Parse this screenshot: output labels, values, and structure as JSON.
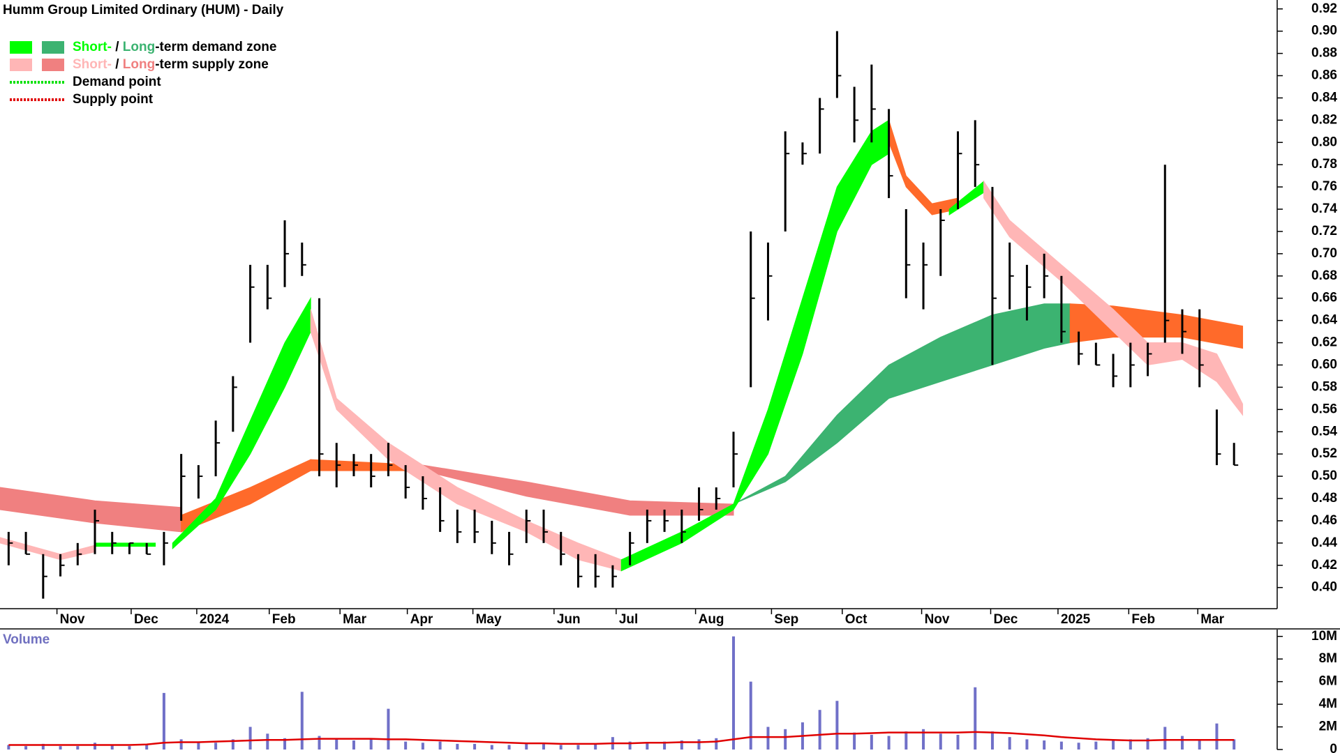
{
  "chart_data": [
    {
      "type": "ohlc",
      "title": "Humm Group Limited Ordinary (HUM) - Daily",
      "color": "#000000",
      "x": [
        0,
        1,
        2,
        3,
        4,
        5,
        6,
        7,
        8,
        9,
        10,
        11,
        12,
        13,
        14,
        15,
        16,
        17,
        18,
        19,
        20,
        21,
        22,
        23,
        24,
        25,
        26,
        27,
        28,
        29,
        30,
        31,
        32,
        33,
        34,
        35,
        36,
        37,
        38,
        39,
        40,
        41,
        42,
        43,
        44,
        45,
        46,
        47,
        48,
        49,
        50,
        51,
        52,
        53,
        54,
        55,
        56,
        57,
        58,
        59,
        60,
        61,
        62,
        63,
        64,
        65,
        66,
        67,
        68,
        69,
        70,
        71
      ],
      "high": [
        0.45,
        0.45,
        0.43,
        0.43,
        0.44,
        0.47,
        0.45,
        0.44,
        0.44,
        0.45,
        0.52,
        0.51,
        0.55,
        0.59,
        0.69,
        0.69,
        0.73,
        0.71,
        0.66,
        0.53,
        0.52,
        0.52,
        0.53,
        0.51,
        0.5,
        0.49,
        0.47,
        0.47,
        0.46,
        0.45,
        0.47,
        0.47,
        0.45,
        0.43,
        0.43,
        0.42,
        0.45,
        0.47,
        0.47,
        0.47,
        0.49,
        0.49,
        0.54,
        0.72,
        0.71,
        0.81,
        0.8,
        0.84,
        0.9,
        0.85,
        0.87,
        0.83,
        0.74,
        0.71,
        0.74,
        0.81,
        0.82,
        0.76,
        0.71,
        0.69,
        0.7,
        0.68,
        0.63,
        0.62,
        0.61,
        0.62,
        0.62,
        0.78,
        0.65,
        0.65,
        0.56,
        0.53
      ],
      "low": [
        0.42,
        0.43,
        0.39,
        0.41,
        0.42,
        0.43,
        0.43,
        0.43,
        0.43,
        0.42,
        0.46,
        0.48,
        0.5,
        0.54,
        0.62,
        0.65,
        0.67,
        0.68,
        0.5,
        0.49,
        0.5,
        0.49,
        0.5,
        0.48,
        0.47,
        0.45,
        0.44,
        0.44,
        0.43,
        0.42,
        0.44,
        0.44,
        0.42,
        0.4,
        0.4,
        0.4,
        0.42,
        0.44,
        0.45,
        0.44,
        0.46,
        0.47,
        0.49,
        0.58,
        0.64,
        0.72,
        0.78,
        0.79,
        0.84,
        0.8,
        0.8,
        0.75,
        0.66,
        0.65,
        0.68,
        0.74,
        0.76,
        0.6,
        0.65,
        0.64,
        0.66,
        0.62,
        0.6,
        0.6,
        0.58,
        0.58,
        0.59,
        0.62,
        0.61,
        0.58,
        0.51,
        0.51
      ],
      "close": [
        0.44,
        0.43,
        0.41,
        0.42,
        0.43,
        0.46,
        0.44,
        0.44,
        0.43,
        0.44,
        0.5,
        0.5,
        0.53,
        0.58,
        0.67,
        0.66,
        0.7,
        0.69,
        0.52,
        0.51,
        0.51,
        0.5,
        0.51,
        0.49,
        0.48,
        0.46,
        0.45,
        0.45,
        0.44,
        0.43,
        0.46,
        0.45,
        0.43,
        0.41,
        0.41,
        0.41,
        0.44,
        0.46,
        0.46,
        0.45,
        0.47,
        0.48,
        0.52,
        0.66,
        0.68,
        0.79,
        0.79,
        0.83,
        0.86,
        0.82,
        0.83,
        0.77,
        0.69,
        0.69,
        0.73,
        0.79,
        0.78,
        0.66,
        0.68,
        0.67,
        0.68,
        0.63,
        0.61,
        0.6,
        0.59,
        0.6,
        0.61,
        0.64,
        0.63,
        0.6,
        0.52,
        0.51
      ],
      "xlim": [
        -0.5,
        73.5
      ],
      "xticks": [
        {
          "value": 2.8,
          "label": "Nov"
        },
        {
          "value": 7.1,
          "label": "Dec"
        },
        {
          "value": 10.9,
          "label": "2024"
        },
        {
          "value": 15.1,
          "label": "Feb"
        },
        {
          "value": 19.2,
          "label": "Mar"
        },
        {
          "value": 23.1,
          "label": "Apr"
        },
        {
          "value": 26.9,
          "label": "May"
        },
        {
          "value": 31.6,
          "label": "Jun"
        },
        {
          "value": 35.2,
          "label": "Jul"
        },
        {
          "value": 39.8,
          "label": "Aug"
        },
        {
          "value": 44.2,
          "label": "Sep"
        },
        {
          "value": 48.3,
          "label": "Oct"
        },
        {
          "value": 52.9,
          "label": "Nov"
        },
        {
          "value": 56.9,
          "label": "Dec"
        },
        {
          "value": 60.8,
          "label": "2025"
        },
        {
          "value": 64.9,
          "label": "Feb"
        },
        {
          "value": 68.9,
          "label": "Mar"
        }
      ],
      "ylim": [
        0.381,
        0.928
      ],
      "yticks": [
        {
          "value": 0.4,
          "label": "0.40"
        },
        {
          "value": 0.42,
          "label": "0.42"
        },
        {
          "value": 0.44,
          "label": "0.44"
        },
        {
          "value": 0.46,
          "label": "0.46"
        },
        {
          "value": 0.48,
          "label": "0.48"
        },
        {
          "value": 0.5,
          "label": "0.50"
        },
        {
          "value": 0.52,
          "label": "0.52"
        },
        {
          "value": 0.54,
          "label": "0.54"
        },
        {
          "value": 0.56,
          "label": "0.56"
        },
        {
          "value": 0.58,
          "label": "0.58"
        },
        {
          "value": 0.6,
          "label": "0.60"
        },
        {
          "value": 0.62,
          "label": "0.62"
        },
        {
          "value": 0.64,
          "label": "0.64"
        },
        {
          "value": 0.66,
          "label": "0.66"
        },
        {
          "value": 0.68,
          "label": "0.68"
        },
        {
          "value": 0.7,
          "label": "0.70"
        },
        {
          "value": 0.72,
          "label": "0.72"
        },
        {
          "value": 0.74,
          "label": "0.74"
        },
        {
          "value": 0.76,
          "label": "0.76"
        },
        {
          "value": 0.78,
          "label": "0.78"
        },
        {
          "value": 0.8,
          "label": "0.80"
        },
        {
          "value": 0.82,
          "label": "0.82"
        },
        {
          "value": 0.84,
          "label": "0.84"
        },
        {
          "value": 0.86,
          "label": "0.86"
        },
        {
          "value": 0.88,
          "label": "0.88"
        },
        {
          "value": 0.9,
          "label": "0.90"
        },
        {
          "value": 0.92,
          "label": "0.92"
        }
      ],
      "zones": [
        {
          "color": "#f08080",
          "x": [
            -0.5,
            5,
            10
          ],
          "upper": [
            0.49,
            0.478,
            0.472
          ],
          "lower": [
            0.47,
            0.458,
            0.45
          ]
        },
        {
          "color": "#ff6a2a",
          "x": [
            10,
            14,
            17.5
          ],
          "upper": [
            0.465,
            0.49,
            0.515
          ],
          "lower": [
            0.45,
            0.475,
            0.505
          ]
        },
        {
          "color": "#ff6a2a",
          "x": [
            17.5,
            24
          ],
          "upper": [
            0.515,
            0.51
          ],
          "lower": [
            0.505,
            0.505
          ]
        },
        {
          "color": "#f08080",
          "x": [
            24,
            30,
            36,
            42
          ],
          "upper": [
            0.51,
            0.495,
            0.478,
            0.475
          ],
          "lower": [
            0.505,
            0.482,
            0.465,
            0.465
          ]
        },
        {
          "color": "#3cb371",
          "x": [
            42,
            45,
            48,
            51,
            54,
            57,
            60,
            61.5
          ],
          "upper": [
            0.475,
            0.5,
            0.555,
            0.6,
            0.625,
            0.645,
            0.655,
            0.655
          ],
          "lower": [
            0.475,
            0.495,
            0.53,
            0.57,
            0.585,
            0.6,
            0.615,
            0.62
          ]
        },
        {
          "color": "#ff6a2a",
          "x": [
            61.5,
            64,
            68,
            71.5
          ],
          "upper": [
            0.655,
            0.653,
            0.645,
            0.635
          ],
          "lower": [
            0.62,
            0.625,
            0.625,
            0.615
          ]
        },
        {
          "color": "#ffb6b6",
          "x": [
            -0.5,
            3,
            5
          ],
          "upper": [
            0.445,
            0.43,
            0.438
          ],
          "lower": [
            0.44,
            0.425,
            0.432
          ]
        },
        {
          "color": "#00ff00",
          "x": [
            5,
            8.5
          ],
          "upper": [
            0.44,
            0.44
          ],
          "lower": [
            0.437,
            0.437
          ]
        },
        {
          "color": "#00ff00",
          "x": [
            9.5,
            12,
            14,
            16,
            17.5
          ],
          "upper": [
            0.44,
            0.48,
            0.55,
            0.62,
            0.66
          ],
          "lower": [
            0.435,
            0.47,
            0.52,
            0.58,
            0.63
          ]
        },
        {
          "color": "#ffb6b6",
          "x": [
            17.5,
            19,
            22,
            26,
            30,
            33,
            35.5
          ],
          "upper": [
            0.65,
            0.57,
            0.53,
            0.49,
            0.46,
            0.44,
            0.425
          ],
          "lower": [
            0.63,
            0.56,
            0.515,
            0.475,
            0.45,
            0.425,
            0.415
          ]
        },
        {
          "color": "#00ff00",
          "x": [
            35.5,
            39,
            42,
            44,
            46,
            48,
            50,
            51
          ],
          "upper": [
            0.425,
            0.45,
            0.475,
            0.56,
            0.66,
            0.76,
            0.81,
            0.82
          ],
          "lower": [
            0.415,
            0.44,
            0.47,
            0.52,
            0.61,
            0.72,
            0.78,
            0.79
          ]
        },
        {
          "color": "#ff6a2a",
          "x": [
            51,
            52,
            53.5,
            55
          ],
          "upper": [
            0.82,
            0.77,
            0.745,
            0.75
          ],
          "lower": [
            0.8,
            0.76,
            0.735,
            0.74
          ]
        },
        {
          "color": "#00ff00",
          "x": [
            54.5,
            56.5
          ],
          "upper": [
            0.74,
            0.765
          ],
          "lower": [
            0.735,
            0.755
          ]
        },
        {
          "color": "#ffb6b6",
          "x": [
            56.5,
            58,
            61,
            64,
            66,
            68,
            70,
            71.5
          ],
          "upper": [
            0.765,
            0.73,
            0.69,
            0.65,
            0.62,
            0.62,
            0.61,
            0.565
          ],
          "lower": [
            0.75,
            0.715,
            0.675,
            0.63,
            0.6,
            0.605,
            0.585,
            0.555
          ]
        }
      ],
      "legend": [
        {
          "swatches": [
            "#00ff00",
            "#3cb371"
          ],
          "parts": [
            {
              "text": "Short-",
              "color": "#00ff00"
            },
            {
              "text": " / ",
              "color": "#000000"
            },
            {
              "text": "Long",
              "color": "#3cb371"
            },
            {
              "text": "-term demand zone",
              "color": "#000000"
            }
          ]
        },
        {
          "swatches": [
            "#ffb6b6",
            "#f08080"
          ],
          "parts": [
            {
              "text": "Short-",
              "color": "#ffb6b6"
            },
            {
              "text": " / ",
              "color": "#000000"
            },
            {
              "text": "Long",
              "color": "#f08080"
            },
            {
              "text": "-term supply zone",
              "color": "#000000"
            }
          ]
        },
        {
          "dotted": "#00e000",
          "parts": [
            {
              "text": "Demand point",
              "color": "#000000"
            }
          ]
        },
        {
          "dotted": "#e00000",
          "parts": [
            {
              "text": "Supply point",
              "color": "#000000"
            }
          ]
        }
      ]
    },
    {
      "type": "bar",
      "title": "Volume",
      "color": "#7070c8",
      "average_color": "#e00000",
      "x": [
        0,
        1,
        2,
        3,
        4,
        5,
        6,
        7,
        8,
        9,
        10,
        11,
        12,
        13,
        14,
        15,
        16,
        17,
        18,
        19,
        20,
        21,
        22,
        23,
        24,
        25,
        26,
        27,
        28,
        29,
        30,
        31,
        32,
        33,
        34,
        35,
        36,
        37,
        38,
        39,
        40,
        41,
        42,
        43,
        44,
        45,
        46,
        47,
        48,
        49,
        50,
        51,
        52,
        53,
        54,
        55,
        56,
        57,
        58,
        59,
        60,
        61,
        62,
        63,
        64,
        65,
        66,
        67,
        68,
        69,
        70,
        71
      ],
      "values": [
        400000,
        300000,
        500000,
        300000,
        300000,
        600000,
        400000,
        300000,
        400000,
        5000000,
        900000,
        700000,
        600000,
        900000,
        2000000,
        1400000,
        1000000,
        5100000,
        1200000,
        900000,
        800000,
        1000000,
        3600000,
        700000,
        600000,
        700000,
        500000,
        500000,
        400000,
        400000,
        600000,
        500000,
        400000,
        400000,
        500000,
        1100000,
        700000,
        600000,
        700000,
        800000,
        900000,
        1000000,
        10000000,
        6000000,
        2000000,
        1800000,
        2400000,
        3500000,
        4300000,
        1500000,
        1300000,
        1200000,
        1600000,
        1800000,
        1400000,
        1300000,
        5500000,
        1600000,
        1100000,
        900000,
        800000,
        700000,
        600000,
        700000,
        800000,
        900000,
        1000000,
        2000000,
        1200000,
        900000,
        2300000,
        900000
      ],
      "average": [
        400000,
        400000,
        400000,
        400000,
        400000,
        400000,
        400000,
        400000,
        450000,
        600000,
        650000,
        650000,
        700000,
        750000,
        800000,
        850000,
        850000,
        900000,
        950000,
        950000,
        950000,
        950000,
        900000,
        900000,
        850000,
        800000,
        750000,
        700000,
        650000,
        600000,
        550000,
        550000,
        500000,
        500000,
        500000,
        550000,
        550000,
        600000,
        600000,
        650000,
        650000,
        700000,
        900000,
        1100000,
        1100000,
        1100000,
        1200000,
        1300000,
        1400000,
        1400000,
        1450000,
        1500000,
        1500000,
        1500000,
        1500000,
        1500000,
        1550000,
        1500000,
        1450000,
        1350000,
        1250000,
        1100000,
        1000000,
        900000,
        850000,
        800000,
        800000,
        850000,
        850000,
        850000,
        850000,
        850000
      ],
      "xlim": [
        -0.5,
        73.5
      ],
      "ylim": [
        0,
        10600000
      ],
      "yticks": [
        0,
        {
          "value": 2000000,
          "label": "2M"
        },
        {
          "value": 4000000,
          "label": "4M"
        },
        {
          "value": 6000000,
          "label": "6M"
        },
        {
          "value": 8000000,
          "label": "8M"
        },
        {
          "value": 10000000,
          "label": "10M"
        }
      ]
    }
  ]
}
